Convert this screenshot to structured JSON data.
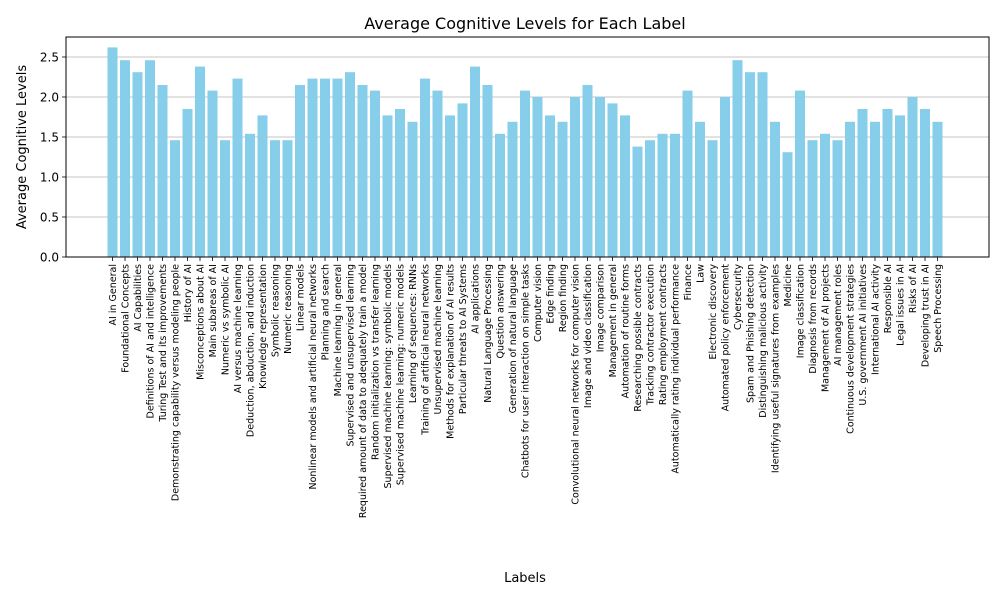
{
  "chart_data": {
    "type": "bar",
    "title": "Average Cognitive Levels for Each Label",
    "xlabel": "Labels",
    "ylabel": "Average Cognitive Levels",
    "ylim": [
      0,
      2.75
    ],
    "yticks": [
      "0.0",
      "0.5",
      "1.0",
      "1.5",
      "2.0",
      "2.5"
    ],
    "grid": "y",
    "bar_color": "#87ceeb",
    "categories": [
      "AI in General",
      "Foundational Concepts",
      "AI Capabilities",
      "Definitions of AI and intelligence",
      "Turing Test and its improvements",
      "Demonstrating capability versus modeling people",
      "History of AI",
      "Misconceptions about AI",
      "Main subareas of AI",
      "Numeric vs symbolic AI",
      "AI versus machine learning",
      "Deduction, abduction, and induction",
      "Knowledge representation",
      "Symbolic reasoning",
      "Numeric reasoning",
      "Linear models",
      "Nonlinear models and artificial neural networks",
      "Planning and search",
      "Machine learning in general",
      "Supervised and unsupervised learning",
      "Required amount of data to adequately train a model",
      "Random initialization vs transfer learning",
      "Supervised machine learning: symbolic models",
      "Supervised machine learning: numeric models",
      "Learning of sequences: RNNs",
      "Training of artificial neural networks",
      "Unsupervised machine learning",
      "Methods for explanation of AI results",
      "Particular threats to AI Systems",
      "AI applications",
      "Natural Language Processing",
      "Question answering",
      "Generation of natural language",
      "Chatbots for user interaction on simple tasks",
      "Computer vision",
      "Edge finding",
      "Region finding",
      "Convolutional neural networks for computer vision",
      "Image and video classification",
      "Image comparison",
      "Management in general",
      "Automation of routine forms",
      "Researching possible contracts",
      "Tracking contractor execution",
      "Rating employment contracts",
      "Automatically rating individual performance",
      "Finance",
      "Law",
      "Electronic discovery",
      "Automated policy enforcement",
      "Cybersecurity",
      "Spam and Phishing detection",
      "Distinguishing malicious activity",
      "Identifying useful signatures from examples",
      "Medicine",
      "Image classification",
      "Diagnosis from records",
      "Management of AI projects",
      "AI management roles",
      "Continuous development strategies",
      "U.S. government AI initiatives",
      "International AI activity",
      "Responsible AI",
      "Legal issues in AI",
      "Risks of AI",
      "Developing trust in AI",
      "Speech Processing"
    ],
    "values": [
      2.62,
      2.46,
      2.31,
      2.46,
      2.15,
      1.46,
      1.85,
      2.38,
      2.08,
      1.46,
      2.23,
      1.54,
      1.77,
      1.46,
      1.46,
      2.15,
      2.23,
      2.23,
      2.23,
      2.31,
      2.15,
      2.08,
      1.77,
      1.85,
      1.69,
      2.23,
      2.08,
      1.77,
      1.92,
      2.38,
      2.15,
      1.54,
      1.69,
      2.08,
      2.0,
      1.77,
      1.69,
      2.0,
      2.15,
      2.0,
      1.92,
      1.77,
      1.38,
      1.46,
      1.54,
      1.54,
      2.08,
      1.69,
      1.46,
      2.0,
      2.46,
      2.31,
      2.31,
      1.69,
      1.31,
      2.08,
      1.46,
      1.54,
      1.46,
      1.69,
      1.85,
      1.69,
      1.85,
      1.77,
      2.0,
      1.85,
      1.69
    ]
  }
}
